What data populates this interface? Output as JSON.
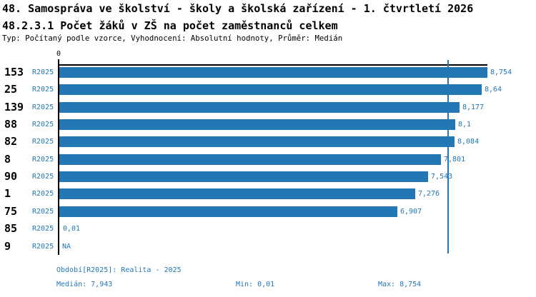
{
  "header": {
    "title": "48. Samospráva ve školství - školy a školská zařízení - 1. čtvrtletí 2026",
    "subtitle": "48.2.3.1 Počet žáků v ZŠ na počet zaměstnanců celkem",
    "meta": "Typ: Počítaný podle vzorce, Vyhodnocení: Absolutní hodnoty, Průměr: Medián"
  },
  "colors": {
    "bar": "#2277B4",
    "accent_text": "#2277B4",
    "axis": "#000000",
    "background": "#FFFFFF"
  },
  "chart_data": {
    "type": "bar",
    "orientation": "horizontal",
    "x_axis": {
      "tick_labels": [
        "0"
      ],
      "min": 0,
      "max_value_shown": 8.754
    },
    "median_reference_line": 7.943,
    "legend_position": "none",
    "grid": false,
    "rows": [
      {
        "id": "153",
        "period": "R2025",
        "value": 8.754,
        "label": "8,754"
      },
      {
        "id": "25",
        "period": "R2025",
        "value": 8.64,
        "label": "8,64"
      },
      {
        "id": "139",
        "period": "R2025",
        "value": 8.177,
        "label": "8,177"
      },
      {
        "id": "88",
        "period": "R2025",
        "value": 8.1,
        "label": "8,1"
      },
      {
        "id": "82",
        "period": "R2025",
        "value": 8.084,
        "label": "8,084"
      },
      {
        "id": "8",
        "period": "R2025",
        "value": 7.801,
        "label": "7,801"
      },
      {
        "id": "90",
        "period": "R2025",
        "value": 7.543,
        "label": "7,543"
      },
      {
        "id": "1",
        "period": "R2025",
        "value": 7.276,
        "label": "7,276"
      },
      {
        "id": "75",
        "period": "R2025",
        "value": 6.907,
        "label": "6,907"
      },
      {
        "id": "85",
        "period": "R2025",
        "value": 0.01,
        "label": "0,01"
      },
      {
        "id": "9",
        "period": "R2025",
        "value": null,
        "label": "NA"
      }
    ]
  },
  "axis": {
    "zero_label": "0"
  },
  "footer": {
    "period_line": "Období[R2025]: Realita - 2025",
    "median": "Medián: 7,943",
    "min": "Min: 0,01",
    "max": "Max: 8,754"
  }
}
